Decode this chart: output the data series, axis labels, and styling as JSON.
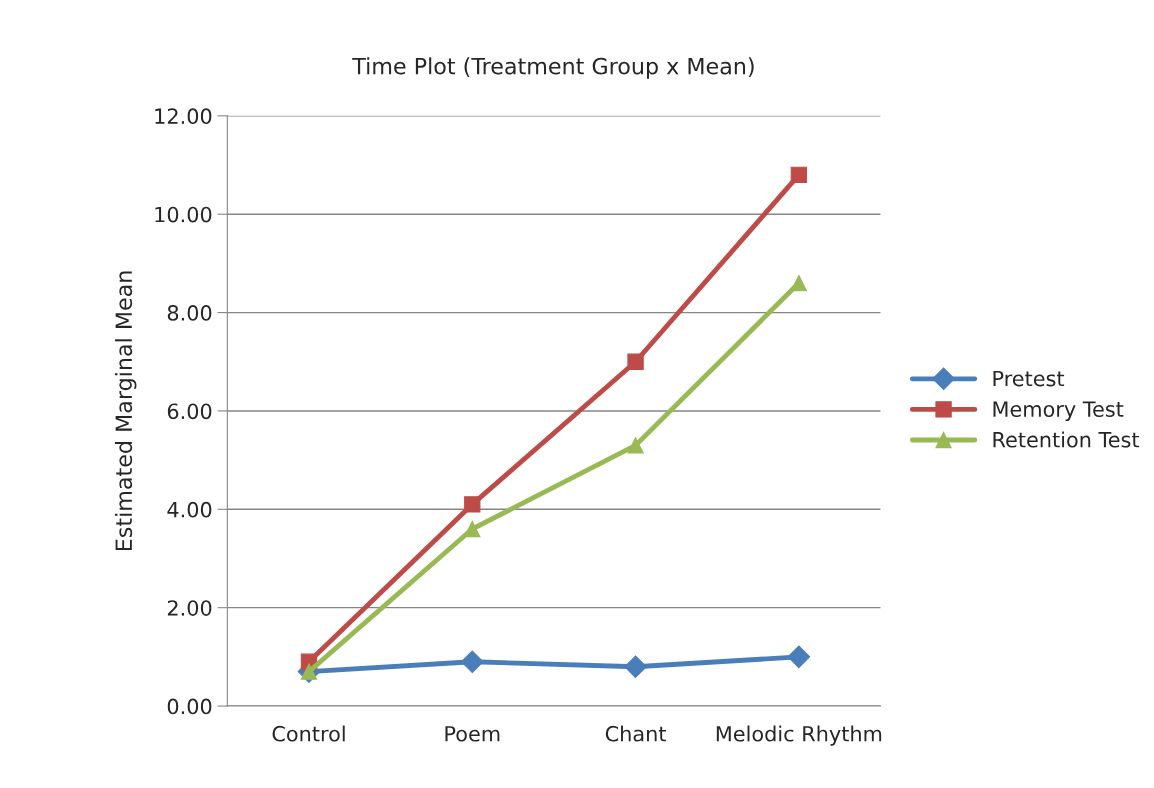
{
  "chart_data": {
    "type": "line",
    "title": "Time Plot (Treatment Group x Mean)",
    "ylabel": "Estimated Marginal Mean",
    "categories": [
      "Control",
      "Poem",
      "Chant",
      "Melodic Rhythm"
    ],
    "series": [
      {
        "name": "Pretest",
        "color": "#4a7ebb",
        "marker": "diamond",
        "values": [
          0.7,
          0.9,
          0.8,
          1.0
        ]
      },
      {
        "name": "Memory Test",
        "color": "#be4b48",
        "marker": "square",
        "values": [
          0.9,
          4.1,
          7.0,
          10.8
        ]
      },
      {
        "name": "Retention Test",
        "color": "#98b954",
        "marker": "triangle",
        "values": [
          0.7,
          3.6,
          5.3,
          8.6
        ]
      }
    ],
    "ylim": [
      0,
      12
    ],
    "yticks": [
      {
        "value": 0,
        "label": "0.00"
      },
      {
        "value": 2,
        "label": "2.00"
      },
      {
        "value": 4,
        "label": "4.00"
      },
      {
        "value": 6,
        "label": "6.00"
      },
      {
        "value": 8,
        "label": "8.00"
      },
      {
        "value": 10,
        "label": "10.00"
      },
      {
        "value": 12,
        "label": "12.00"
      }
    ],
    "grid": "y",
    "legend": "right",
    "line_style": "solid"
  }
}
